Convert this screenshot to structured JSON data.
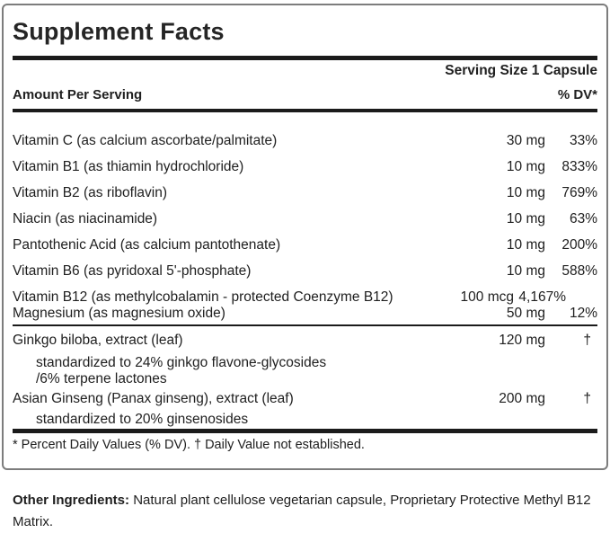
{
  "label": {
    "title": "Supplement Facts",
    "serving_size": "Serving Size 1 Capsule",
    "header": {
      "amount_label": "Amount Per Serving",
      "dv_label": "% DV*"
    },
    "nutrients": [
      {
        "name": "Vitamin C (as calcium ascorbate/palmitate)",
        "amount": "30 mg",
        "dv": "33%"
      },
      {
        "name": "Vitamin B1 (as thiamin hydrochloride)",
        "amount": "10 mg",
        "dv": "833%"
      },
      {
        "name": "Vitamin B2 (as riboflavin)",
        "amount": "10 mg",
        "dv": "769%"
      },
      {
        "name": "Niacin (as niacinamide)",
        "amount": "10 mg",
        "dv": "63%"
      },
      {
        "name": "Pantothenic Acid (as calcium pantothenate)",
        "amount": "10 mg",
        "dv": "200%"
      },
      {
        "name": "Vitamin B6 (as pyridoxal 5'-phosphate)",
        "amount": "10 mg",
        "dv": "588%"
      },
      {
        "name": "Vitamin B12 (as methylcobalamin - protected Coenzyme B12)",
        "amount": "100 mcg",
        "dv": "4,167%"
      },
      {
        "name": "Magnesium (as magnesium oxide)",
        "amount": "50 mg",
        "dv": "12%"
      }
    ],
    "botanicals": [
      {
        "name": "Ginkgo biloba, extract (leaf)",
        "amount": "120 mg",
        "dv": "†",
        "details": [
          "standardized to 24% ginkgo flavone-glycosides",
          "/6% terpene lactones"
        ]
      },
      {
        "name": "Asian Ginseng (Panax ginseng), extract (leaf)",
        "amount": "200 mg",
        "dv": "†",
        "details": [
          "standardized to 20% ginsenosides"
        ]
      }
    ],
    "footnote": "* Percent Daily Values (% DV). † Daily Value not established.",
    "other_ingredients": {
      "label": "Other Ingredients:",
      "text": "Natural plant cellulose vegetarian capsule, Proprietary Protective Methyl B12 Matrix."
    },
    "colors": {
      "text": "#202020",
      "bar": "#1b1b1b",
      "box_border": "#7d7d7d",
      "background": "#ffffff"
    }
  }
}
